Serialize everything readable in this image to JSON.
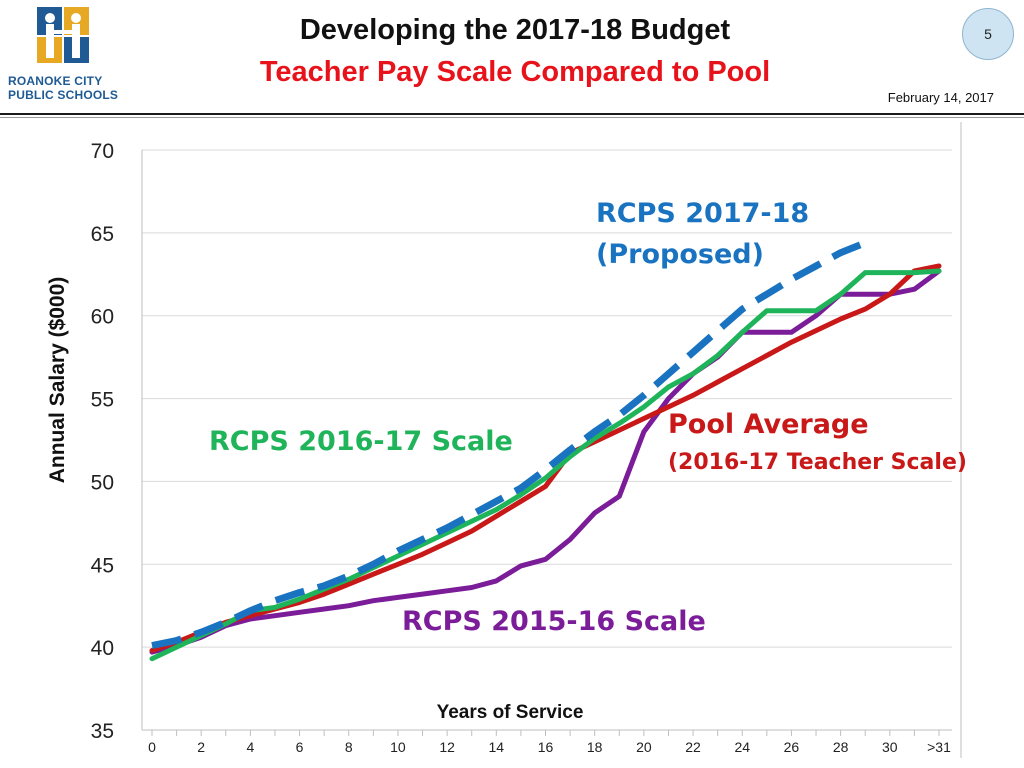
{
  "header": {
    "title": "Developing the 2017-18 Budget",
    "subtitle": "Teacher Pay Scale Compared to Pool",
    "page_number": "5",
    "date": "February 14, 2017",
    "logo_line1": "ROANOKE CITY",
    "logo_line2": "PUBLIC SCHOOLS"
  },
  "colors": {
    "rcps_2017_18": "#1a73c0",
    "rcps_2016_17": "#1fb45a",
    "rcps_2015_16": "#7b1c99",
    "pool_average": "#c81818",
    "logo_blue": "#1f5a94",
    "logo_gold": "#e7a823"
  },
  "chart_data": {
    "type": "line",
    "xlabel": "Years of Service",
    "ylabel": "Annual Salary ($000)",
    "ylim": [
      35,
      70
    ],
    "yticks": [
      "35",
      "40",
      "45",
      "50",
      "55",
      "60",
      "65",
      "70"
    ],
    "xticks": [
      "0",
      "2",
      "4",
      "6",
      "8",
      "10",
      "12",
      "14",
      "16",
      "18",
      "20",
      "22",
      "24",
      "26",
      "28",
      "30",
      ">31"
    ],
    "grid": "horizontal",
    "x": [
      0,
      1,
      2,
      3,
      4,
      5,
      6,
      7,
      8,
      9,
      10,
      11,
      12,
      13,
      14,
      15,
      16,
      17,
      18,
      19,
      20,
      21,
      22,
      23,
      24,
      25,
      26,
      27,
      28,
      29,
      30,
      31,
      32
    ],
    "series": [
      {
        "name": "RCPS 2015-16 Scale",
        "label_lines": [
          "RCPS 2015-16 Scale"
        ],
        "style": "solid",
        "values": [
          39.7,
          40.1,
          40.6,
          41.3,
          41.7,
          41.9,
          42.1,
          42.3,
          42.5,
          42.8,
          43.0,
          43.2,
          43.4,
          43.6,
          44.0,
          44.9,
          45.3,
          46.5,
          48.1,
          49.1,
          53.0,
          55.0,
          56.5,
          57.5,
          59.0,
          59.0,
          59.0,
          60.0,
          61.3,
          61.3,
          61.3,
          61.6,
          62.7
        ]
      },
      {
        "name": "RCPS 2016-17 Scale",
        "label_lines": [
          "RCPS 2016-17 Scale"
        ],
        "style": "solid",
        "values": [
          39.3,
          40.0,
          40.7,
          41.4,
          42.2,
          42.4,
          42.9,
          43.5,
          44.1,
          44.8,
          45.5,
          46.2,
          46.9,
          47.6,
          48.3,
          49.2,
          50.2,
          51.5,
          52.6,
          53.5,
          54.5,
          55.7,
          56.5,
          57.6,
          59.0,
          60.3,
          60.3,
          60.3,
          61.3,
          62.6,
          62.6,
          62.6,
          62.7
        ]
      },
      {
        "name": "RCPS 2017-18 (Proposed)",
        "label_lines": [
          "RCPS 2017-18",
          "(Proposed)"
        ],
        "style": "dashed",
        "values": [
          40.1,
          40.4,
          40.9,
          41.5,
          42.2,
          42.8,
          43.3,
          43.7,
          44.3,
          45.0,
          45.8,
          46.5,
          47.2,
          48.0,
          48.8,
          49.6,
          50.7,
          51.9,
          53.0,
          54.0,
          55.2,
          56.5,
          57.8,
          59.1,
          60.4,
          61.3,
          62.2,
          63.0,
          63.8,
          64.4,
          null,
          null,
          null
        ]
      },
      {
        "name": "Pool Average (2016-17 Teacher Scale)",
        "label_lines": [
          "Pool Average",
          "(2016-17 Teacher Scale)"
        ],
        "style": "solid",
        "values": [
          39.8,
          40.3,
          40.9,
          41.5,
          41.9,
          42.3,
          42.7,
          43.2,
          43.8,
          44.4,
          45.0,
          45.6,
          46.3,
          47.0,
          47.9,
          48.8,
          49.7,
          51.7,
          52.4,
          53.1,
          53.8,
          54.5,
          55.2,
          56.0,
          56.8,
          57.6,
          58.4,
          59.1,
          59.8,
          60.4,
          61.3,
          62.7,
          63.0
        ]
      }
    ]
  }
}
